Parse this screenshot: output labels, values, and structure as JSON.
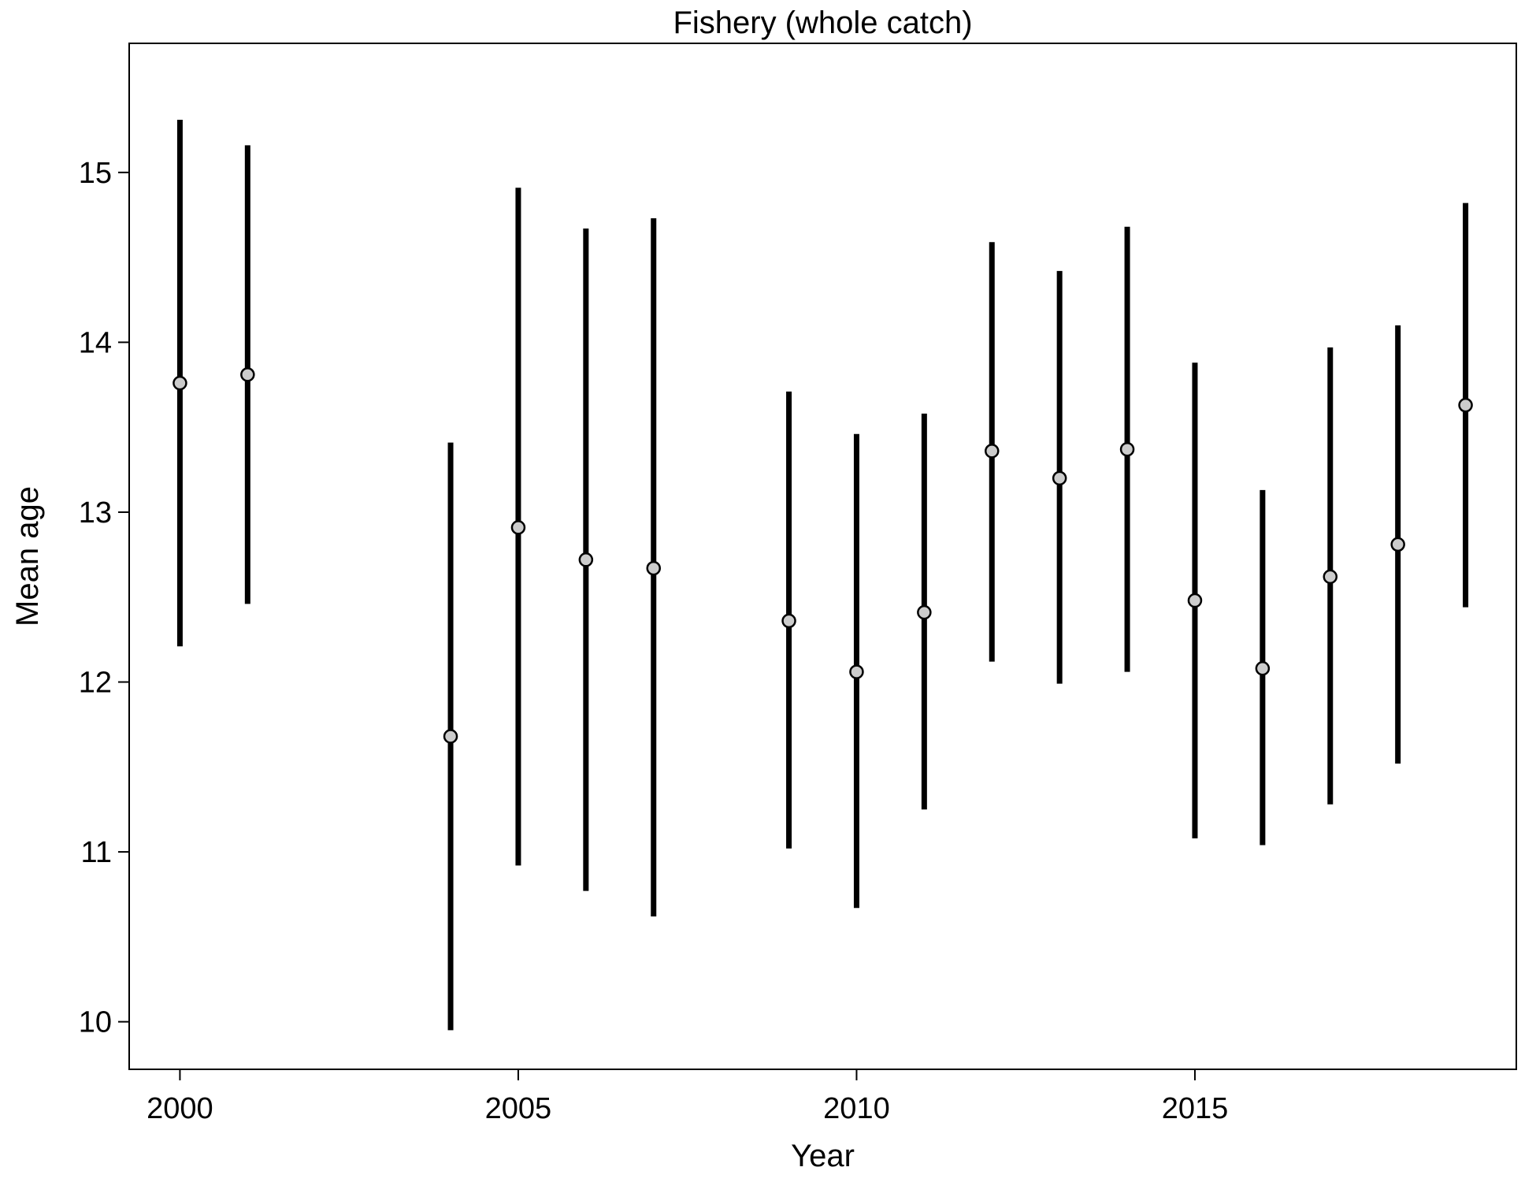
{
  "chart_data": {
    "type": "scatter",
    "title": "Fishery (whole catch)",
    "xlabel": "Year",
    "ylabel": "Mean age",
    "xlim": [
      1999.25,
      2019.75
    ],
    "ylim": [
      9.72,
      15.76
    ],
    "xticks": [
      2000,
      2005,
      2010,
      2015
    ],
    "yticks": [
      10,
      11,
      12,
      13,
      14,
      15
    ],
    "grid": false,
    "legend": "none",
    "series": [
      {
        "points": [
          {
            "x": 2000,
            "y": 13.76,
            "lower": 12.21,
            "upper": 15.31
          },
          {
            "x": 2001,
            "y": 13.81,
            "lower": 12.46,
            "upper": 15.16
          },
          {
            "x": 2004,
            "y": 11.68,
            "lower": 9.95,
            "upper": 13.41
          },
          {
            "x": 2005,
            "y": 12.91,
            "lower": 10.92,
            "upper": 14.91
          },
          {
            "x": 2006,
            "y": 12.72,
            "lower": 10.77,
            "upper": 14.67
          },
          {
            "x": 2007,
            "y": 12.67,
            "lower": 10.62,
            "upper": 14.73
          },
          {
            "x": 2009,
            "y": 12.36,
            "lower": 11.02,
            "upper": 13.71
          },
          {
            "x": 2010,
            "y": 12.06,
            "lower": 10.67,
            "upper": 13.46
          },
          {
            "x": 2011,
            "y": 12.41,
            "lower": 11.25,
            "upper": 13.58
          },
          {
            "x": 2012,
            "y": 13.36,
            "lower": 12.12,
            "upper": 14.59
          },
          {
            "x": 2013,
            "y": 13.2,
            "lower": 11.99,
            "upper": 14.42
          },
          {
            "x": 2014,
            "y": 13.37,
            "lower": 12.06,
            "upper": 14.68
          },
          {
            "x": 2015,
            "y": 12.48,
            "lower": 11.08,
            "upper": 13.88
          },
          {
            "x": 2016,
            "y": 12.08,
            "lower": 11.04,
            "upper": 13.13
          },
          {
            "x": 2017,
            "y": 12.62,
            "lower": 11.28,
            "upper": 13.97
          },
          {
            "x": 2018,
            "y": 12.81,
            "lower": 11.52,
            "upper": 14.1
          },
          {
            "x": 2019,
            "y": 13.63,
            "lower": 12.44,
            "upper": 14.82
          }
        ]
      }
    ]
  },
  "colors": {
    "interval": "#000000",
    "point_fill": "#cccccc",
    "point_stroke": "#000000",
    "frame": "#000000"
  }
}
